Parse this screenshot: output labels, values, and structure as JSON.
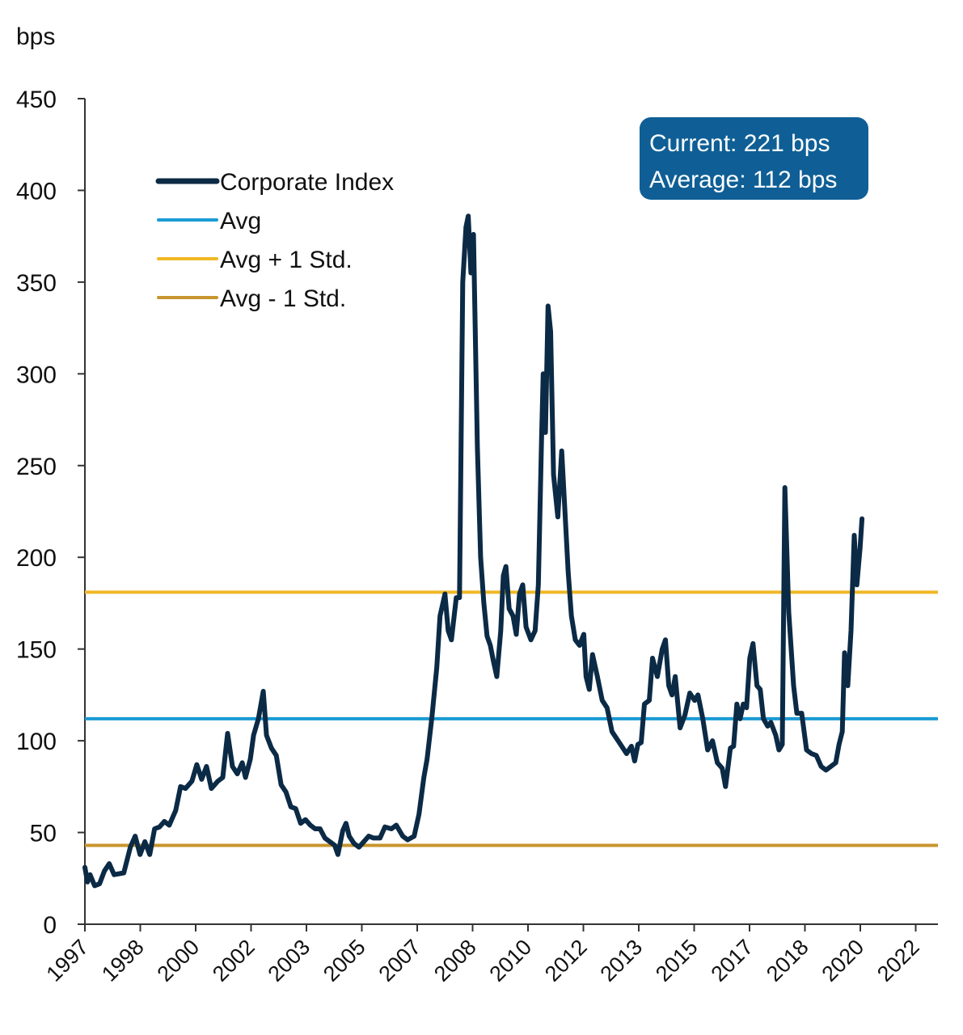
{
  "chart_data": {
    "type": "line",
    "ylabel": "bps",
    "ylim": [
      0,
      450
    ],
    "yticks": [
      0,
      50,
      100,
      150,
      200,
      250,
      300,
      350,
      400,
      450
    ],
    "xlim": [
      1997,
      2023.3
    ],
    "xtick_labels": [
      "1997",
      "1998",
      "2000",
      "2002",
      "2003",
      "2005",
      "2007",
      "2008",
      "2010",
      "2012",
      "2013",
      "2015",
      "2017",
      "2018",
      "2020",
      "2022"
    ],
    "legend_position": "top-left",
    "grid": false,
    "annotation": {
      "lines": [
        "Current: 221 bps",
        "Average: 112 bps"
      ],
      "color": "#0f5f96",
      "position": "top-right"
    },
    "series": [
      {
        "name": "Corporate Index",
        "color": "#0b2a45",
        "points": [
          [
            1997.0,
            31
          ],
          [
            1997.08,
            23
          ],
          [
            1997.16,
            27
          ],
          [
            1997.3,
            21
          ],
          [
            1997.45,
            22
          ],
          [
            1997.6,
            29
          ],
          [
            1997.75,
            33
          ],
          [
            1997.9,
            27
          ],
          [
            1998.2,
            28
          ],
          [
            1998.4,
            42
          ],
          [
            1998.55,
            48
          ],
          [
            1998.7,
            38
          ],
          [
            1998.85,
            45
          ],
          [
            1999.0,
            38
          ],
          [
            1999.15,
            52
          ],
          [
            1999.3,
            53
          ],
          [
            1999.45,
            56
          ],
          [
            1999.6,
            54
          ],
          [
            1999.8,
            62
          ],
          [
            1999.95,
            75
          ],
          [
            2000.1,
            74
          ],
          [
            2000.3,
            78
          ],
          [
            2000.45,
            87
          ],
          [
            2000.6,
            79
          ],
          [
            2000.75,
            86
          ],
          [
            2000.9,
            74
          ],
          [
            2001.1,
            78
          ],
          [
            2001.25,
            80
          ],
          [
            2001.4,
            104
          ],
          [
            2001.55,
            86
          ],
          [
            2001.7,
            82
          ],
          [
            2001.85,
            88
          ],
          [
            2001.95,
            80
          ],
          [
            2002.1,
            90
          ],
          [
            2002.2,
            103
          ],
          [
            2002.35,
            112
          ],
          [
            2002.5,
            127
          ],
          [
            2002.6,
            103
          ],
          [
            2002.75,
            96
          ],
          [
            2002.9,
            92
          ],
          [
            2003.05,
            76
          ],
          [
            2003.2,
            72
          ],
          [
            2003.35,
            64
          ],
          [
            2003.5,
            63
          ],
          [
            2003.65,
            55
          ],
          [
            2003.8,
            57
          ],
          [
            2003.95,
            54
          ],
          [
            2004.1,
            52
          ],
          [
            2004.25,
            52
          ],
          [
            2004.4,
            47
          ],
          [
            2004.55,
            45
          ],
          [
            2004.7,
            43
          ],
          [
            2004.8,
            38
          ],
          [
            2004.95,
            51
          ],
          [
            2005.05,
            55
          ],
          [
            2005.15,
            48
          ],
          [
            2005.3,
            44
          ],
          [
            2005.45,
            42
          ],
          [
            2005.6,
            45
          ],
          [
            2005.75,
            48
          ],
          [
            2005.9,
            47
          ],
          [
            2006.1,
            47
          ],
          [
            2006.25,
            53
          ],
          [
            2006.45,
            52
          ],
          [
            2006.6,
            54
          ],
          [
            2006.8,
            48
          ],
          [
            2006.95,
            46
          ],
          [
            2007.15,
            48
          ],
          [
            2007.3,
            60
          ],
          [
            2007.45,
            80
          ],
          [
            2007.55,
            90
          ],
          [
            2007.7,
            113
          ],
          [
            2007.85,
            140
          ],
          [
            2007.95,
            168
          ],
          [
            2008.1,
            180
          ],
          [
            2008.2,
            160
          ],
          [
            2008.3,
            155
          ],
          [
            2008.45,
            178
          ],
          [
            2008.55,
            178
          ],
          [
            2008.65,
            350
          ],
          [
            2008.75,
            380
          ],
          [
            2008.82,
            386
          ],
          [
            2008.9,
            355
          ],
          [
            2008.98,
            376
          ],
          [
            2009.1,
            260
          ],
          [
            2009.2,
            200
          ],
          [
            2009.3,
            175
          ],
          [
            2009.4,
            157
          ],
          [
            2009.5,
            152
          ],
          [
            2009.6,
            143
          ],
          [
            2009.7,
            135
          ],
          [
            2009.82,
            160
          ],
          [
            2009.9,
            190
          ],
          [
            2009.98,
            195
          ],
          [
            2010.08,
            172
          ],
          [
            2010.2,
            168
          ],
          [
            2010.3,
            158
          ],
          [
            2010.4,
            180
          ],
          [
            2010.5,
            185
          ],
          [
            2010.6,
            162
          ],
          [
            2010.75,
            155
          ],
          [
            2010.88,
            160
          ],
          [
            2010.98,
            185
          ],
          [
            2011.08,
            265
          ],
          [
            2011.13,
            300
          ],
          [
            2011.2,
            268
          ],
          [
            2011.28,
            337
          ],
          [
            2011.36,
            323
          ],
          [
            2011.45,
            245
          ],
          [
            2011.58,
            222
          ],
          [
            2011.7,
            258
          ],
          [
            2011.8,
            225
          ],
          [
            2011.9,
            192
          ],
          [
            2012.0,
            168
          ],
          [
            2012.12,
            155
          ],
          [
            2012.25,
            152
          ],
          [
            2012.38,
            158
          ],
          [
            2012.45,
            135
          ],
          [
            2012.55,
            128
          ],
          [
            2012.65,
            147
          ],
          [
            2012.8,
            135
          ],
          [
            2012.95,
            122
          ],
          [
            2013.1,
            118
          ],
          [
            2013.25,
            105
          ],
          [
            2013.4,
            101
          ],
          [
            2013.55,
            97
          ],
          [
            2013.7,
            93
          ],
          [
            2013.85,
            97
          ],
          [
            2013.95,
            89
          ],
          [
            2014.05,
            98
          ],
          [
            2014.15,
            99
          ],
          [
            2014.25,
            120
          ],
          [
            2014.4,
            122
          ],
          [
            2014.5,
            145
          ],
          [
            2014.65,
            135
          ],
          [
            2014.8,
            150
          ],
          [
            2014.9,
            155
          ],
          [
            2015.0,
            130
          ],
          [
            2015.1,
            125
          ],
          [
            2015.2,
            135
          ],
          [
            2015.35,
            107
          ],
          [
            2015.5,
            114
          ],
          [
            2015.65,
            126
          ],
          [
            2015.8,
            122
          ],
          [
            2015.9,
            125
          ],
          [
            2016.05,
            112
          ],
          [
            2016.2,
            95
          ],
          [
            2016.35,
            100
          ],
          [
            2016.5,
            88
          ],
          [
            2016.65,
            85
          ],
          [
            2016.75,
            75
          ],
          [
            2016.9,
            96
          ],
          [
            2017.0,
            97
          ],
          [
            2017.1,
            120
          ],
          [
            2017.2,
            112
          ],
          [
            2017.3,
            120
          ],
          [
            2017.4,
            118
          ],
          [
            2017.5,
            145
          ],
          [
            2017.6,
            153
          ],
          [
            2017.72,
            130
          ],
          [
            2017.82,
            128
          ],
          [
            2017.92,
            112
          ],
          [
            2018.05,
            108
          ],
          [
            2018.15,
            110
          ],
          [
            2018.3,
            103
          ],
          [
            2018.4,
            95
          ],
          [
            2018.5,
            98
          ],
          [
            2018.58,
            238
          ],
          [
            2018.7,
            170
          ],
          [
            2018.85,
            130
          ],
          [
            2018.95,
            115
          ],
          [
            2019.1,
            115
          ],
          [
            2019.25,
            95
          ],
          [
            2019.4,
            93
          ],
          [
            2019.55,
            92
          ],
          [
            2019.7,
            86
          ],
          [
            2019.85,
            84
          ],
          [
            2020.0,
            86
          ],
          [
            2020.15,
            88
          ],
          [
            2020.25,
            98
          ],
          [
            2020.35,
            105
          ],
          [
            2020.42,
            148
          ],
          [
            2020.52,
            130
          ],
          [
            2020.62,
            160
          ],
          [
            2020.72,
            212
          ],
          [
            2020.8,
            185
          ],
          [
            2020.9,
            205
          ],
          [
            2020.96,
            221
          ]
        ]
      },
      {
        "name": "Avg",
        "color": "#1a9bd4",
        "value": 112
      },
      {
        "name": "Avg + 1 Std.",
        "color": "#f0b826",
        "value": 181
      },
      {
        "name": "Avg - 1 Std.",
        "color": "#c8952e",
        "value": 43
      }
    ]
  }
}
